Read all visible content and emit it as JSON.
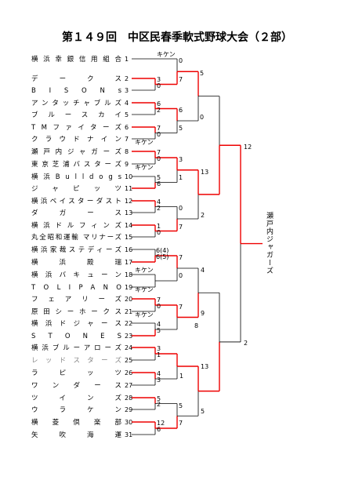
{
  "title": "第１４９回　中区民春季軟式野球大会（２部）",
  "teams": [
    {
      "name": "横浜幸銀信用組合",
      "no": 1
    },
    {
      "name": "デークス",
      "no": 2
    },
    {
      "name": "BISONs",
      "no": 3
    },
    {
      "name": "アンタッチャブルズ",
      "no": 4
    },
    {
      "name": "ブルースカイ",
      "no": 5
    },
    {
      "name": "TMファイターズ",
      "no": 6
    },
    {
      "name": "クラウドナイン",
      "no": 7
    },
    {
      "name": "瀬戸内ジャガーズ",
      "no": 8
    },
    {
      "name": "東京芝浦バスターズ",
      "no": 9
    },
    {
      "name": "横浜Bulldogs",
      "no": 10
    },
    {
      "name": "ジャピッツ",
      "no": 11
    },
    {
      "name": "横浜ベイスターダスト",
      "no": 12
    },
    {
      "name": "ダガース",
      "no": 13
    },
    {
      "name": "横浜ドルフィンズ",
      "no": 14
    },
    {
      "name": "丸全昭和運輸 マリナーズ",
      "no": 15
    },
    {
      "name": "横浜家裁ステディーズ",
      "no": 16
    },
    {
      "name": "横浜殿瑞",
      "no": 17
    },
    {
      "name": "横浜バキューン",
      "no": 18
    },
    {
      "name": "TOLIPANO",
      "no": 19
    },
    {
      "name": "フェアリーズ",
      "no": 20
    },
    {
      "name": "原田シーホークス",
      "no": 21
    },
    {
      "name": "横浜ドジャース",
      "no": 22
    },
    {
      "name": "STONES",
      "no": 23
    },
    {
      "name": "横浜ブルーアローズ",
      "no": 24
    },
    {
      "name": "レッドスターズ",
      "no": 25
    },
    {
      "name": "ラピッツ",
      "no": 26
    },
    {
      "name": "ワンダース",
      "no": 27
    },
    {
      "name": "ツインズ",
      "no": 28
    },
    {
      "name": "ウラケン",
      "no": 29
    },
    {
      "name": "横菱倶楽部",
      "no": 30
    },
    {
      "name": "矢吹海運",
      "no": 31
    }
  ],
  "scores": [
    "3",
    "0",
    "6",
    "2",
    "7",
    "0",
    "7",
    "0",
    "5",
    "6",
    "4",
    "2",
    "1",
    "0",
    "6(4)",
    "6(5)",
    "7",
    "0",
    "4",
    "5",
    "3",
    "1",
    "4",
    "3",
    "5",
    "2",
    "12",
    "6",
    "0",
    "7",
    "6",
    "5",
    "3",
    "1",
    "0",
    "7",
    "7",
    "0",
    "7",
    "8",
    "1",
    "5",
    "7",
    "5",
    "0",
    "13",
    "2",
    "4",
    "9",
    "13",
    "5",
    "12",
    "2"
  ],
  "forfeits": [
    "キケン",
    "キケン",
    "キケン",
    "キケン",
    "キケン",
    "キケン"
  ],
  "champion": "瀬戸内ジャガーズ"
}
